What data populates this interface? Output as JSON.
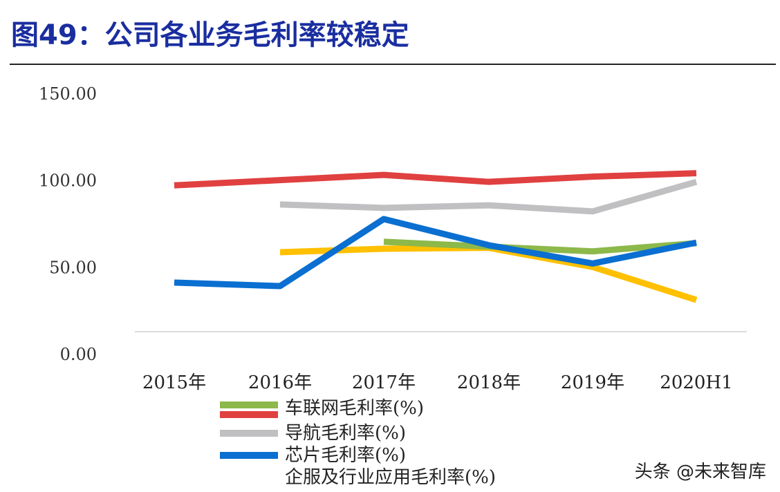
{
  "title": "图49：公司各业务毛利率较稳定",
  "watermark": "头条 @未来智库",
  "legend": [
    "车联网毛利率(%)",
    "导航毛利率(%)",
    "芯片毛利率(%)",
    "企服及行业应用毛利率(%)"
  ],
  "chart_data": {
    "type": "line",
    "title": "",
    "xlabel": "",
    "ylabel": "",
    "categories": [
      "2015年",
      "2016年",
      "2017年",
      "2018年",
      "2019年",
      "2020H1"
    ],
    "yticks": [
      "0.00",
      "50.00",
      "100.00",
      "150.00"
    ],
    "ylim": [
      0,
      150
    ],
    "grid": false,
    "legend_position": "bottom",
    "series": [
      {
        "color": "#e04040",
        "values": [
          97,
          100,
          103,
          99,
          102,
          104
        ]
      },
      {
        "name": "导航毛利率(%)",
        "color": "#c0c0c2",
        "values": [
          null,
          86,
          84,
          85.5,
          82,
          99
        ]
      },
      {
        "name": "企服及行业应用毛利率(%)",
        "color": "#ffc000",
        "values": [
          null,
          58.5,
          60.5,
          61,
          50,
          31
        ]
      },
      {
        "name": "车联网毛利率(%)",
        "color": "#8db84a",
        "values": [
          null,
          null,
          64.5,
          61.7,
          59,
          63.7
        ]
      },
      {
        "name": "芯片毛利率(%)",
        "color": "#0a6fd0",
        "values": [
          41,
          39,
          77.6,
          62.5,
          52,
          64
        ]
      }
    ]
  }
}
